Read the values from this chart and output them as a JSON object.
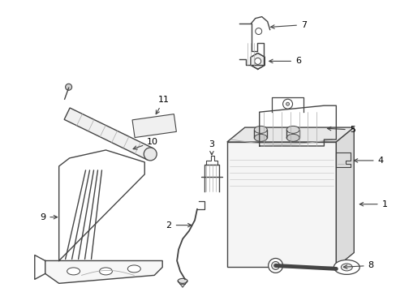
{
  "background_color": "#ffffff",
  "line_color": "#444444",
  "line_width": 1.0,
  "label_color": "#000000",
  "label_fontsize": 8,
  "fig_width": 4.89,
  "fig_height": 3.6,
  "dpi": 100
}
